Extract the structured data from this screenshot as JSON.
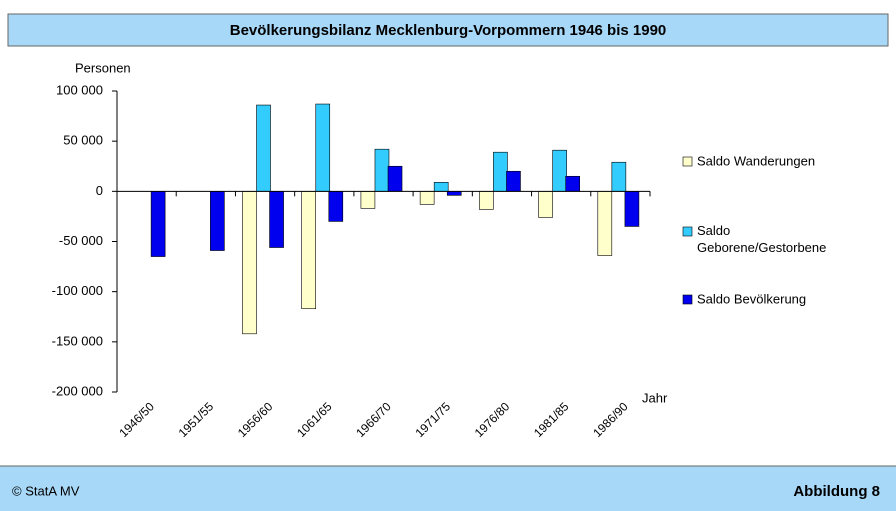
{
  "chart_data": {
    "type": "bar",
    "title": "Bevölkerungsbilanz Mecklenburg-Vorpommern 1946 bis 1990",
    "y_label": "Personen",
    "x_label": "Jahr",
    "source": "© StatA MV",
    "figure_label": "Abbildung 8",
    "categories": [
      "1946/50",
      "1951/55",
      "1956/60",
      "1061/65",
      "1966/70",
      "1971/75",
      "1976/80",
      "1981/85",
      "1986/90"
    ],
    "series": [
      {
        "name": "Saldo Wanderungen",
        "color": "#ffffcc",
        "values": [
          null,
          null,
          -142000,
          -117000,
          -17000,
          -13000,
          -18000,
          -26000,
          -64000
        ]
      },
      {
        "name": "Saldo Geborene/Gestorbene",
        "color": "#33ccff",
        "values": [
          null,
          null,
          86000,
          87000,
          42000,
          9000,
          39000,
          41000,
          29000
        ]
      },
      {
        "name": "Saldo Bevölkerung",
        "color": "#0000ee",
        "values": [
          -65000,
          -59000,
          -56000,
          -30000,
          25000,
          -4000,
          20000,
          15000,
          -35000
        ]
      }
    ],
    "ylim": [
      -200000,
      100000
    ],
    "yticks": [
      {
        "value": -200000,
        "label": "-200 000"
      },
      {
        "value": -150000,
        "label": "-150 000"
      },
      {
        "value": -100000,
        "label": "-100 000"
      },
      {
        "value": -50000,
        "label": "-50 000"
      },
      0,
      {
        "value": 50000,
        "label": "50 000"
      },
      {
        "value": 100000,
        "label": "100 000"
      }
    ],
    "legend": "right"
  }
}
